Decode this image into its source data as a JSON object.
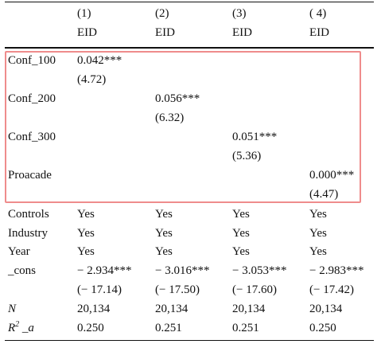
{
  "header": {
    "cols": [
      "(1)",
      "(2)",
      "(3)",
      "( 4)"
    ],
    "dep": [
      "EID",
      "EID",
      "EID",
      "EID"
    ]
  },
  "rows": {
    "conf100": {
      "label": "Conf_100",
      "coef": "0.042***",
      "t": "(4.72)"
    },
    "conf200": {
      "label": "Conf_200",
      "coef": "0.056***",
      "t": "(6.32)"
    },
    "conf300": {
      "label": "Conf_300",
      "coef": "0.051***",
      "t": "(5.36)"
    },
    "proacade": {
      "label": "Proacade",
      "coef": "0.000***",
      "t": "(4.47)"
    },
    "controls": {
      "label": "Controls",
      "vals": [
        "Yes",
        "Yes",
        "Yes",
        "Yes"
      ]
    },
    "industry": {
      "label": "Industry",
      "vals": [
        "Yes",
        "Yes",
        "Yes",
        "Yes"
      ]
    },
    "year": {
      "label": "Year",
      "vals": [
        "Yes",
        "Yes",
        "Yes",
        "Yes"
      ]
    },
    "cons": {
      "label": "_cons",
      "coefs": [
        "− 2.934***",
        "− 3.016***",
        "− 3.053***",
        "− 2.983***"
      ],
      "ts": [
        "(− 17.14)",
        "(− 17.50)",
        "(− 17.60)",
        "(− 17.42)"
      ]
    },
    "n": {
      "label": "N",
      "vals": [
        "20,134",
        "20,134",
        "20,134",
        "20,134"
      ]
    },
    "r2": {
      "label_main": "R",
      "label_sup": "2",
      "label_tail": " _a",
      "vals": [
        "0.250",
        "0.251",
        "0.251",
        "0.250"
      ]
    }
  },
  "colors": {
    "highlight": "#ef8c8c",
    "text": "#111111"
  }
}
